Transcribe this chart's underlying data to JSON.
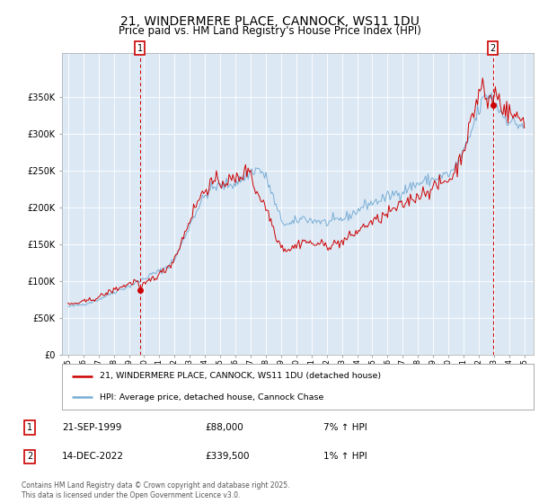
{
  "title": "21, WINDERMERE PLACE, CANNOCK, WS11 1DU",
  "subtitle": "Price paid vs. HM Land Registry's House Price Index (HPI)",
  "title_fontsize": 10,
  "subtitle_fontsize": 8.5,
  "background_color": "#ffffff",
  "plot_bg_color": "#dce9f5",
  "grid_color": "#ffffff",
  "ylim": [
    0,
    410000
  ],
  "yticks": [
    0,
    50000,
    100000,
    150000,
    200000,
    250000,
    300000,
    350000
  ],
  "ytick_labels": [
    "£0",
    "£50K",
    "£100K",
    "£150K",
    "£200K",
    "£250K",
    "£300K",
    "£350K"
  ],
  "xlim_start": 1994.6,
  "xlim_end": 2025.6,
  "xtick_years": [
    1995,
    1996,
    1997,
    1998,
    1999,
    2000,
    2001,
    2002,
    2003,
    2004,
    2005,
    2006,
    2007,
    2008,
    2009,
    2010,
    2011,
    2012,
    2013,
    2014,
    2015,
    2016,
    2017,
    2018,
    2019,
    2020,
    2021,
    2022,
    2023,
    2024,
    2025
  ],
  "red_line_color": "#cc0000",
  "blue_line_color": "#7aadd4",
  "marker1_x": 1999.72,
  "marker1_y": 88000,
  "marker1_label": "1",
  "marker2_x": 2022.95,
  "marker2_y": 339500,
  "marker2_label": "2",
  "legend_label_red": "21, WINDERMERE PLACE, CANNOCK, WS11 1DU (detached house)",
  "legend_label_blue": "HPI: Average price, detached house, Cannock Chase",
  "ann1_num": "1",
  "ann1_date": "21-SEP-1999",
  "ann1_price": "£88,000",
  "ann1_hpi": "7% ↑ HPI",
  "ann2_num": "2",
  "ann2_date": "14-DEC-2022",
  "ann2_price": "£339,500",
  "ann2_hpi": "1% ↑ HPI",
  "footer": "Contains HM Land Registry data © Crown copyright and database right 2025.\nThis data is licensed under the Open Government Licence v3.0."
}
